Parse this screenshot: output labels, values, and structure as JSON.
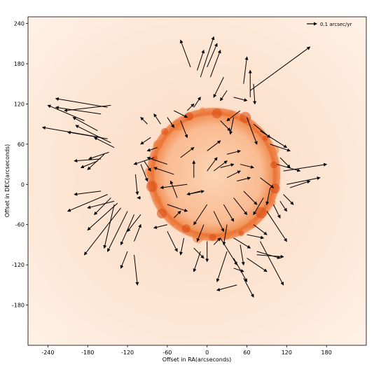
{
  "chart_data": {
    "type": "scatter",
    "subtype": "proper-motion vector field over radio image",
    "title": "",
    "xlabel": "Offset in RA(arcseconds)",
    "ylabel": "Offset in DEC(arcseconds)",
    "xlim": [
      -270,
      240
    ],
    "ylim": [
      -240,
      250
    ],
    "x_ticks": [
      -240,
      -180,
      -120,
      -60,
      0,
      60,
      120,
      180
    ],
    "y_ticks": [
      240,
      180,
      120,
      60,
      0,
      -60,
      -120,
      -180
    ],
    "grid": false,
    "legend": {
      "position": "top-right",
      "label": "0.1 arcsec/yr"
    },
    "background_colormap": "white-orange",
    "shell": {
      "center": [
        10,
        15
      ],
      "radius": 95
    },
    "vectors": [
      [
        -150,
        115,
        -228,
        128
      ],
      [
        -145,
        118,
        -215,
        110
      ],
      [
        -160,
        105,
        -228,
        115
      ],
      [
        -185,
        95,
        -240,
        118
      ],
      [
        -165,
        80,
        -202,
        100
      ],
      [
        -160,
        70,
        -248,
        85
      ],
      [
        -150,
        68,
        -210,
        78
      ],
      [
        -145,
        62,
        -198,
        88
      ],
      [
        -140,
        55,
        -170,
        70
      ],
      [
        -148,
        48,
        -178,
        38
      ],
      [
        -155,
        45,
        -180,
        22
      ],
      [
        -160,
        38,
        -200,
        35
      ],
      [
        -165,
        35,
        -190,
        25
      ],
      [
        -160,
        -10,
        -200,
        -15
      ],
      [
        -150,
        -15,
        -210,
        -40
      ],
      [
        -145,
        -20,
        -170,
        -45
      ],
      [
        -140,
        -25,
        -180,
        -35
      ],
      [
        -135,
        -28,
        -180,
        -68
      ],
      [
        -130,
        -35,
        -185,
        -105
      ],
      [
        -140,
        -30,
        -155,
        -95
      ],
      [
        -120,
        -40,
        -150,
        -100
      ],
      [
        -110,
        -45,
        -130,
        -90
      ],
      [
        -100,
        -45,
        -120,
        -70
      ],
      [
        -120,
        -100,
        -130,
        -125
      ],
      [
        -110,
        -105,
        -105,
        -150
      ],
      [
        -110,
        -85,
        -100,
        -60
      ],
      [
        -100,
        -20,
        -105,
        -20
      ],
      [
        -108,
        15,
        -105,
        -15
      ],
      [
        -100,
        30,
        -90,
        5
      ],
      [
        -95,
        35,
        -85,
        20
      ],
      [
        -80,
        40,
        -110,
        30
      ],
      [
        -75,
        55,
        -90,
        50
      ],
      [
        -85,
        70,
        -100,
        60
      ],
      [
        -90,
        90,
        -100,
        100
      ],
      [
        -70,
        90,
        -80,
        105
      ],
      [
        -60,
        100,
        -50,
        85
      ],
      [
        -50,
        110,
        -30,
        100
      ],
      [
        -40,
        95,
        -30,
        70
      ],
      [
        -30,
        110,
        -20,
        120
      ],
      [
        -20,
        115,
        -10,
        130
      ],
      [
        -25,
        175,
        -40,
        215
      ],
      [
        -15,
        170,
        -5,
        200
      ],
      [
        -10,
        160,
        10,
        220
      ],
      [
        0,
        175,
        15,
        210
      ],
      [
        5,
        160,
        20,
        200
      ],
      [
        25,
        160,
        10,
        130
      ],
      [
        30,
        140,
        20,
        125
      ],
      [
        40,
        130,
        60,
        125
      ],
      [
        55,
        150,
        60,
        190
      ],
      [
        65,
        130,
        65,
        170
      ],
      [
        70,
        150,
        72,
        120
      ],
      [
        65,
        140,
        155,
        205
      ],
      [
        50,
        110,
        30,
        95
      ],
      [
        40,
        100,
        35,
        75
      ],
      [
        20,
        95,
        35,
        80
      ],
      [
        60,
        100,
        75,
        60
      ],
      [
        70,
        90,
        95,
        70
      ],
      [
        80,
        80,
        120,
        55
      ],
      [
        95,
        60,
        125,
        50
      ],
      [
        110,
        40,
        125,
        25
      ],
      [
        105,
        30,
        140,
        20
      ],
      [
        115,
        20,
        180,
        30
      ],
      [
        120,
        0,
        170,
        10
      ],
      [
        125,
        -5,
        155,
        5
      ],
      [
        115,
        -15,
        130,
        -30
      ],
      [
        110,
        -25,
        120,
        -40
      ],
      [
        100,
        -30,
        110,
        -50
      ],
      [
        90,
        -40,
        120,
        -85
      ],
      [
        70,
        -60,
        90,
        -75
      ],
      [
        60,
        -75,
        85,
        -80
      ],
      [
        80,
        -85,
        115,
        -150
      ],
      [
        75,
        -100,
        110,
        -110
      ],
      [
        60,
        -110,
        90,
        -130
      ],
      [
        40,
        -110,
        60,
        -145
      ],
      [
        30,
        -100,
        15,
        -145
      ],
      [
        10,
        -90,
        20,
        -80
      ],
      [
        0,
        -85,
        0,
        -115
      ],
      [
        -10,
        -100,
        -20,
        -130
      ],
      [
        -20,
        -95,
        -5,
        -110
      ],
      [
        -35,
        -80,
        -40,
        -105
      ],
      [
        -60,
        -70,
        -45,
        -100
      ],
      [
        -60,
        -60,
        -80,
        -65
      ],
      [
        -50,
        -50,
        -40,
        -40
      ],
      [
        -60,
        -30,
        -30,
        -40
      ],
      [
        -45,
        -20,
        -55,
        5
      ],
      [
        -30,
        -15,
        -5,
        -10
      ],
      [
        -20,
        10,
        -20,
        35
      ],
      [
        0,
        20,
        15,
        40
      ],
      [
        10,
        20,
        30,
        35
      ],
      [
        20,
        25,
        40,
        30
      ],
      [
        30,
        10,
        50,
        20
      ],
      [
        45,
        5,
        65,
        10
      ],
      [
        55,
        -10,
        75,
        -30
      ],
      [
        40,
        -20,
        60,
        -45
      ],
      [
        25,
        -30,
        40,
        -55
      ],
      [
        10,
        -40,
        25,
        -70
      ],
      [
        0,
        -30,
        -20,
        -60
      ],
      [
        -10,
        -10,
        -30,
        -15
      ],
      [
        -30,
        0,
        -70,
        -5
      ],
      [
        -50,
        15,
        -80,
        25
      ],
      [
        -60,
        30,
        -90,
        40
      ],
      [
        -40,
        40,
        -20,
        55
      ],
      [
        0,
        50,
        20,
        65
      ],
      [
        30,
        45,
        50,
        50
      ],
      [
        50,
        30,
        70,
        25
      ],
      [
        80,
        10,
        100,
        -5
      ],
      [
        95,
        -5,
        90,
        -30
      ],
      [
        85,
        -20,
        70,
        -45
      ],
      [
        20,
        -80,
        45,
        -120
      ],
      [
        30,
        -60,
        25,
        -90
      ],
      [
        -5,
        -60,
        -15,
        -85
      ],
      [
        40,
        -80,
        65,
        -95
      ],
      [
        50,
        -90,
        55,
        -120
      ],
      [
        75,
        -105,
        115,
        -108
      ],
      [
        45,
        -150,
        15,
        -158
      ],
      [
        55,
        -140,
        70,
        -168
      ],
      [
        40,
        -125,
        55,
        -130
      ]
    ]
  }
}
